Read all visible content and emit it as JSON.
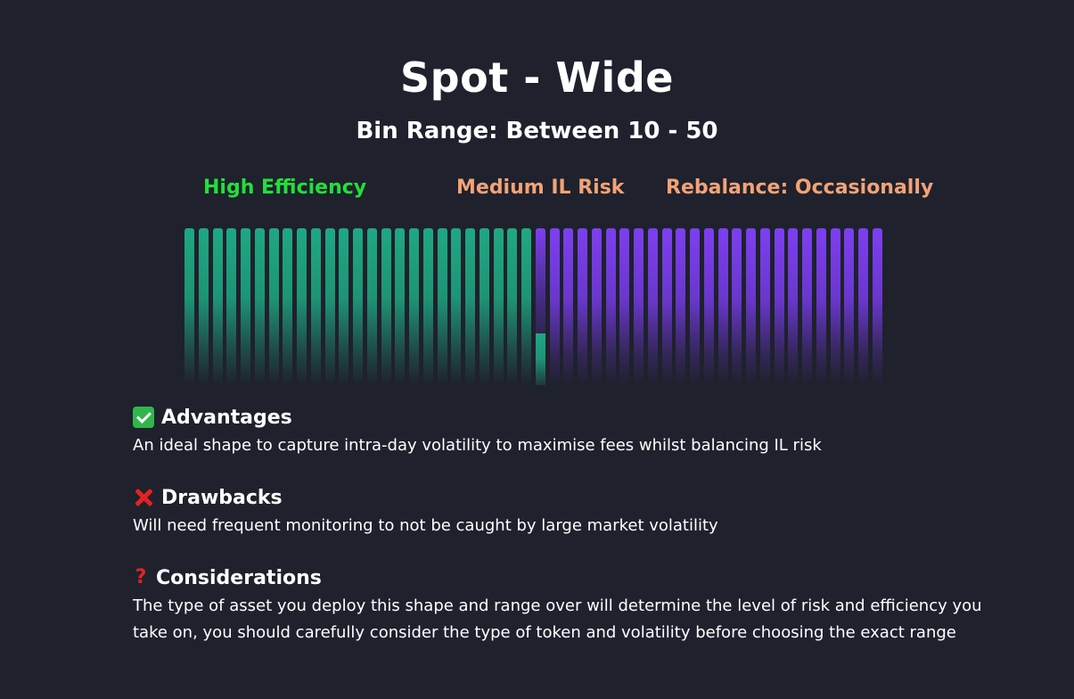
{
  "header": {
    "title": "Spot - Wide",
    "subtitle": "Bin Range: Between 10 - 50"
  },
  "tags": {
    "efficiency": "High Efficiency",
    "risk": "Medium IL Risk",
    "rebalance": "Rebalance: Occasionally"
  },
  "colors": {
    "efficiency": "#22e03a",
    "risk": "#f2a377",
    "bin_green": "#1fa881",
    "bin_purple": "#7d3ff0"
  },
  "bins": {
    "green_count": 25,
    "purple_count": 25,
    "active_bin_green_fraction": 0.33
  },
  "sections": {
    "advantages": {
      "icon": "check-mark-icon",
      "title": "Advantages",
      "text": "An ideal shape to capture intra-day volatility to maximise fees whilst balancing IL risk"
    },
    "drawbacks": {
      "icon": "cross-mark-icon",
      "title": "Drawbacks",
      "text": "Will need frequent monitoring to not be caught by large market volatility"
    },
    "considerations": {
      "icon": "question-mark-icon",
      "title": "Considerations",
      "text": "The type of asset you deploy this shape and range over will determine the level of risk and efficiency you take on, you should carefully consider the type of token and volatility before choosing the exact range"
    }
  }
}
